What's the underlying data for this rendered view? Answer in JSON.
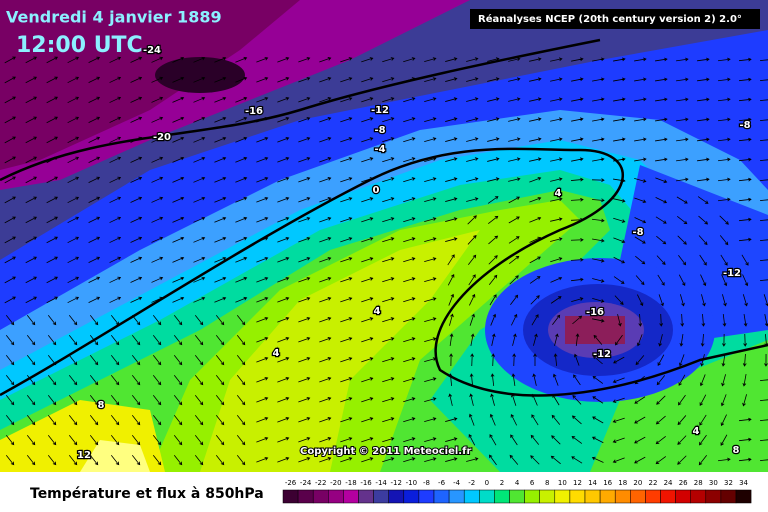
{
  "header": {
    "date": "Vendredi 4 janvier 1889",
    "time": "12:00 UTC",
    "source": "Réanalyses NCEP (20th century version 2) 2.0°"
  },
  "copyright": "Copyright © 2011 Meteociel.fr",
  "contour_labels": [
    -24,
    -16,
    -12,
    -20,
    -8,
    -4,
    0,
    4,
    -8,
    -8,
    -12,
    4,
    -16,
    -12,
    4,
    8,
    12,
    4,
    8
  ],
  "footer": {
    "title": "Température et flux à 850hPa"
  },
  "colorbar": [
    {
      "value": -26,
      "color": "#3c0032"
    },
    {
      "value": -24,
      "color": "#5a004b"
    },
    {
      "value": -22,
      "color": "#780064"
    },
    {
      "value": -20,
      "color": "#960082"
    },
    {
      "value": -18,
      "color": "#b400a0"
    },
    {
      "value": -16,
      "color": "#64328c"
    },
    {
      "value": -14,
      "color": "#3c3ca0"
    },
    {
      "value": -12,
      "color": "#1414b4"
    },
    {
      "value": -10,
      "color": "#0a1edc"
    },
    {
      "value": -8,
      "color": "#1e3cff"
    },
    {
      "value": -6,
      "color": "#1e64ff"
    },
    {
      "value": -4,
      "color": "#2896ff"
    },
    {
      "value": -2,
      "color": "#00c8ff"
    },
    {
      "value": 0,
      "color": "#00dcc8"
    },
    {
      "value": 2,
      "color": "#00e678"
    },
    {
      "value": 4,
      "color": "#50e632"
    },
    {
      "value": 6,
      "color": "#96f000"
    },
    {
      "value": 8,
      "color": "#c8f000"
    },
    {
      "value": 10,
      "color": "#f0f000"
    },
    {
      "value": 12,
      "color": "#ffdc00"
    },
    {
      "value": 14,
      "color": "#ffc800"
    },
    {
      "value": 16,
      "color": "#ffaa00"
    },
    {
      "value": 18,
      "color": "#ff8c00"
    },
    {
      "value": 20,
      "color": "#ff6400"
    },
    {
      "value": 22,
      "color": "#ff3c00"
    },
    {
      "value": 24,
      "color": "#f01400"
    },
    {
      "value": 26,
      "color": "#d20000"
    },
    {
      "value": 28,
      "color": "#b40000"
    },
    {
      "value": 30,
      "color": "#8c0000"
    },
    {
      "value": 32,
      "color": "#640000"
    },
    {
      "value": 34,
      "color": "#1e0000"
    }
  ]
}
